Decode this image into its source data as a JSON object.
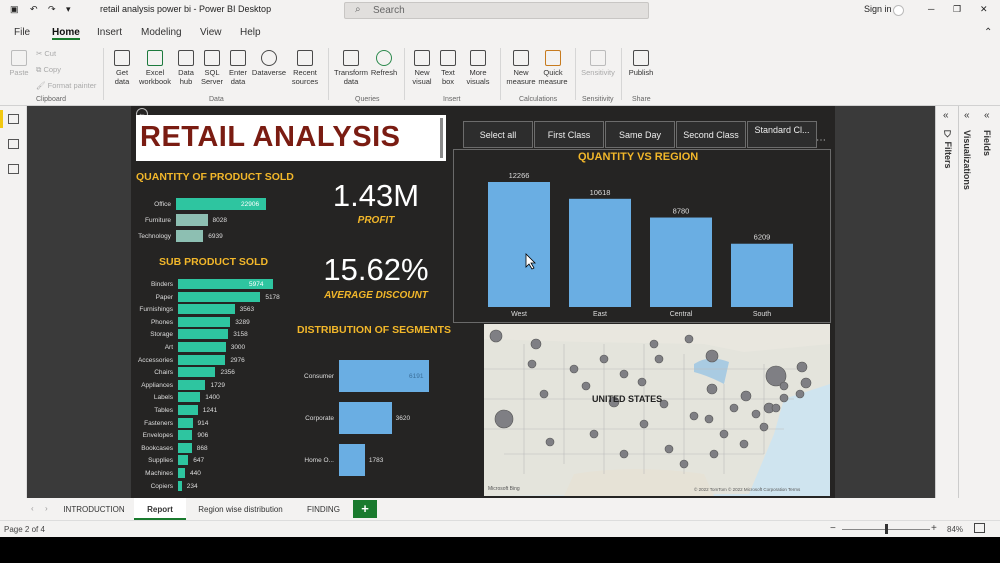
{
  "app": {
    "title": "retail analysis power bi - Power BI Desktop",
    "search_placeholder": "Search",
    "signin": "Sign in"
  },
  "menu": [
    "File",
    "Home",
    "Insert",
    "Modeling",
    "View",
    "Help"
  ],
  "ribbon": {
    "clipboard": {
      "paste": "Paste",
      "cut": "Cut",
      "copy": "Copy",
      "format_painter": "Format painter",
      "group": "Clipboard"
    },
    "data": {
      "get_data": "Get data",
      "excel": "Excel workbook",
      "data_hub": "Data hub",
      "sql": "SQL Server",
      "enter_data": "Enter data",
      "dataverse": "Dataverse",
      "recent": "Recent sources",
      "group": "Data"
    },
    "queries": {
      "transform": "Transform data",
      "refresh": "Refresh",
      "group": "Queries"
    },
    "insert": {
      "new_visual": "New visual",
      "text_box": "Text box",
      "more_visuals": "More visuals",
      "group": "Insert"
    },
    "calc": {
      "new_measure": "New measure",
      "quick_measure": "Quick measure",
      "group": "Calculations"
    },
    "sensitivity": {
      "label": "Sensitivity",
      "group": "Sensitivity"
    },
    "share": {
      "publish": "Publish",
      "group": "Share"
    }
  },
  "panels": {
    "filters": "Filters",
    "visualizations": "Visualizations",
    "fields": "Fields"
  },
  "report": {
    "title": "RETAIL ANALYSIS",
    "slicers": [
      "Select all",
      "First Class",
      "Same Day",
      "Second Class",
      "Standard Cl..."
    ],
    "qty_product_title": "QUANTITY OF PRODUCT SOLD",
    "sub_product_title": "SUB PRODUCT SOLD",
    "profit_value": "1.43M",
    "profit_label": "PROFIT",
    "discount_value": "15.62%",
    "discount_label": "AVERAGE DISCOUNT",
    "segments_title": "DISTRIBUTION OF SEGMENTS",
    "region_title": "QUANTITY VS REGION",
    "map_label": "UNITED STATES",
    "map_credit": "© 2022 TomTom © 2022 Microsoft Corporation Terms",
    "map_logo": "Microsoft Bing"
  },
  "chart_data": [
    {
      "type": "bar",
      "orientation": "horizontal",
      "title": "QUANTITY OF PRODUCT SOLD",
      "categories": [
        "Office",
        "Furniture",
        "Technology"
      ],
      "values": [
        22906,
        8028,
        6939
      ],
      "colors": [
        "#2ec5a0",
        "#8dbfb2",
        "#8dbfb2"
      ]
    },
    {
      "type": "bar",
      "orientation": "horizontal",
      "title": "SUB PRODUCT SOLD",
      "categories": [
        "Binders",
        "Paper",
        "Furnishings",
        "Phones",
        "Storage",
        "Art",
        "Accessories",
        "Chairs",
        "Appliances",
        "Labels",
        "Tables",
        "Fasteners",
        "Envelopes",
        "Bookcases",
        "Supplies",
        "Machines",
        "Copiers"
      ],
      "values": [
        5974,
        5178,
        3563,
        3289,
        3158,
        3000,
        2976,
        2356,
        1729,
        1400,
        1241,
        914,
        906,
        868,
        647,
        440,
        234
      ]
    },
    {
      "type": "bar",
      "orientation": "horizontal",
      "title": "DISTRIBUTION OF SEGMENTS",
      "categories": [
        "Consumer",
        "Corporate",
        "Home O..."
      ],
      "values": [
        6191,
        3620,
        1783
      ]
    },
    {
      "type": "bar",
      "orientation": "vertical",
      "title": "QUANTITY VS REGION",
      "categories": [
        "West",
        "East",
        "Central",
        "South"
      ],
      "values": [
        12266,
        10618,
        8780,
        6209
      ]
    }
  ],
  "page_tabs": [
    "INTRODUCTION",
    "Report",
    "Region wise distribution",
    "FINDING"
  ],
  "status": {
    "page": "Page 2 of 4",
    "zoom": "84%"
  }
}
